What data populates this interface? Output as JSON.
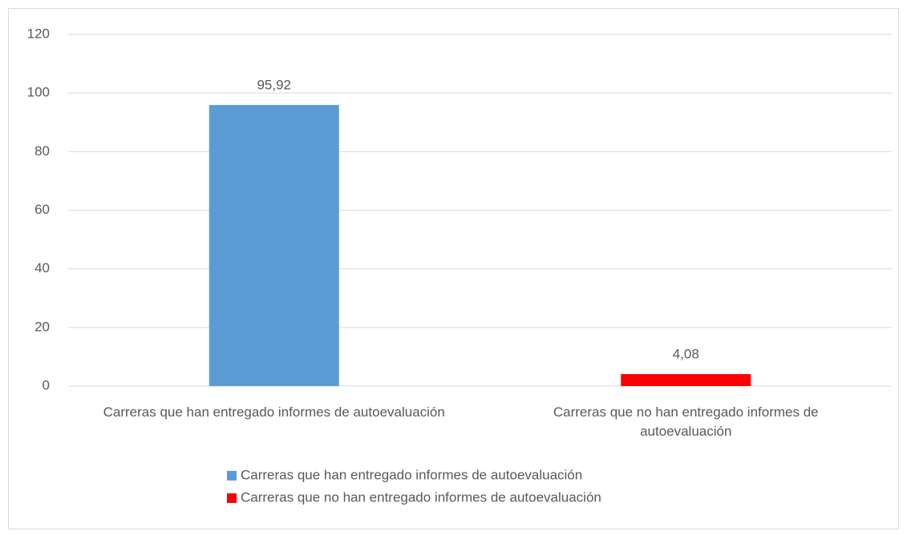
{
  "chart_data": {
    "type": "bar",
    "categories": [
      "Carreras que han entregado informes de autoevaluación",
      "Carreras que no han entregado informes de autoevaluación"
    ],
    "values": [
      95.92,
      4.08
    ],
    "value_labels": [
      "95,92",
      "4,08"
    ],
    "colors": [
      "#5b9bd5",
      "#ff0000"
    ],
    "ylim": [
      0,
      120
    ],
    "yticks": [
      0,
      20,
      40,
      60,
      80,
      100,
      120
    ],
    "grid": true,
    "legend": "bottom"
  }
}
